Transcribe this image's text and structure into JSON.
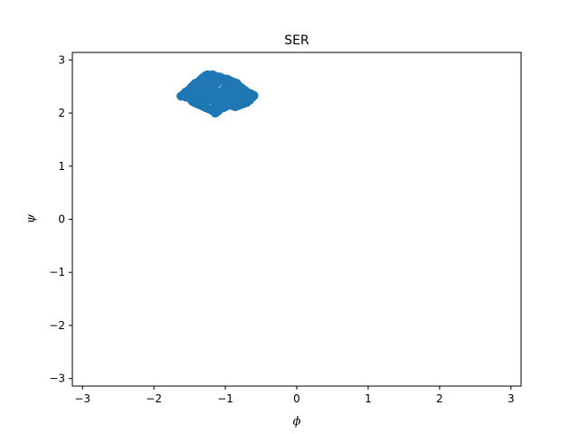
{
  "chart_data": {
    "type": "scatter",
    "title": "SER",
    "xlabel": "ϕ",
    "ylabel": "ψ",
    "xlim": [
      -3.1416,
      3.1416
    ],
    "ylim": [
      -3.1416,
      3.1416
    ],
    "xticks": [
      -3,
      -2,
      -1,
      0,
      1,
      2,
      3
    ],
    "yticks": [
      -3,
      -2,
      -1,
      0,
      1,
      2,
      3
    ],
    "xtick_labels": [
      "−3",
      "−2",
      "−1",
      "0",
      "1",
      "2",
      "3"
    ],
    "ytick_labels": [
      "−3",
      "−2",
      "−1",
      "0",
      "1",
      "2",
      "3"
    ],
    "grid": false,
    "legend": "none",
    "series": [
      {
        "color": "#1f77b4",
        "x": [
          -1.62,
          -1.58,
          -1.55,
          -1.52,
          -1.5,
          -1.48,
          -1.46,
          -1.45,
          -1.43,
          -1.42,
          -1.4,
          -1.38,
          -1.37,
          -1.35,
          -1.33,
          -1.32,
          -1.3,
          -1.28,
          -1.27,
          -1.25,
          -1.23,
          -1.22,
          -1.2,
          -1.18,
          -1.17,
          -1.15,
          -1.13,
          -1.12,
          -1.1,
          -1.08,
          -1.07,
          -1.05,
          -1.03,
          -1.02,
          -1.0,
          -0.98,
          -0.97,
          -0.95,
          -0.93,
          -0.92,
          -0.9,
          -0.88,
          -0.86,
          -0.84,
          -0.82,
          -0.8,
          -0.78,
          -0.76,
          -0.74,
          -0.72,
          -0.7,
          -0.68,
          -0.66,
          -0.64,
          -0.62,
          -0.6,
          -1.55,
          -1.5,
          -1.45,
          -1.4,
          -1.35,
          -1.3,
          -1.25,
          -1.2,
          -1.15,
          -1.1,
          -1.05,
          -1.0,
          -0.95,
          -0.9,
          -0.85,
          -0.8,
          -0.75,
          -0.7,
          -1.48,
          -1.42,
          -1.36,
          -1.3,
          -1.24,
          -1.18,
          -1.12,
          -1.06,
          -1.0,
          -0.94,
          -0.88,
          -0.82,
          -0.76,
          -1.46,
          -1.4,
          -1.34,
          -1.28,
          -1.22,
          -1.16,
          -1.1,
          -1.04,
          -0.98,
          -0.92,
          -0.86,
          -0.8,
          -1.38,
          -1.32,
          -1.26,
          -1.2,
          -1.14,
          -1.08,
          -1.02,
          -0.96,
          -0.9,
          -0.84,
          -1.3,
          -1.24,
          -1.18,
          -1.12,
          -1.06,
          -1.0,
          -0.94,
          -1.14,
          -1.1
        ],
        "y": [
          2.32,
          2.36,
          2.3,
          2.42,
          2.28,
          2.48,
          2.22,
          2.52,
          2.2,
          2.56,
          2.18,
          2.58,
          2.16,
          2.62,
          2.14,
          2.66,
          2.12,
          2.7,
          2.1,
          2.72,
          2.08,
          2.7,
          2.06,
          2.72,
          2.04,
          2.7,
          2.02,
          2.68,
          2.06,
          2.68,
          2.08,
          2.66,
          2.1,
          2.64,
          2.12,
          2.64,
          2.14,
          2.62,
          2.16,
          2.6,
          2.14,
          2.58,
          2.12,
          2.56,
          2.14,
          2.5,
          2.16,
          2.46,
          2.18,
          2.42,
          2.2,
          2.38,
          2.24,
          2.36,
          2.3,
          2.33,
          2.4,
          2.44,
          2.36,
          2.5,
          2.3,
          2.56,
          2.24,
          2.6,
          2.2,
          2.62,
          2.22,
          2.58,
          2.26,
          2.54,
          2.28,
          2.46,
          2.3,
          2.36,
          2.34,
          2.3,
          2.44,
          2.26,
          2.52,
          2.3,
          2.56,
          2.34,
          2.5,
          2.4,
          2.44,
          2.38,
          2.32,
          2.4,
          2.46,
          2.38,
          2.44,
          2.34,
          2.48,
          2.32,
          2.42,
          2.36,
          2.4,
          2.34,
          2.28,
          2.36,
          2.32,
          2.4,
          2.46,
          2.42,
          2.38,
          2.44,
          2.3,
          2.36,
          2.28,
          2.4,
          2.34,
          2.38,
          2.3,
          2.34,
          2.42,
          2.4,
          2.0,
          2.04
        ]
      }
    ]
  }
}
